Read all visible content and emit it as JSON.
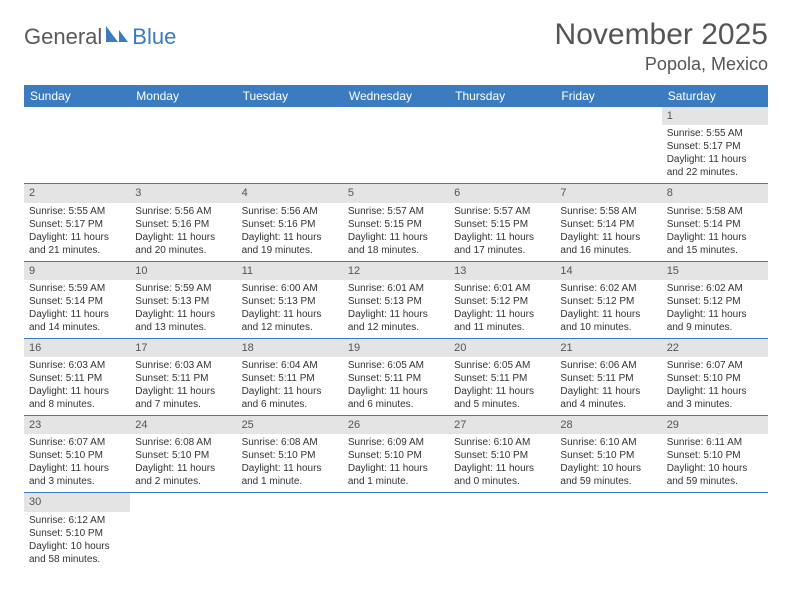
{
  "brand": {
    "name1": "General",
    "name2": "Blue"
  },
  "title": "November 2025",
  "location": "Popola, Mexico",
  "colors": {
    "header_bg": "#3b7bbf",
    "header_fg": "#ffffff",
    "daynum_bg": "#e4e4e4",
    "rule": "#3b7bbf",
    "text": "#333333",
    "title": "#555555"
  },
  "weekdays": [
    "Sunday",
    "Monday",
    "Tuesday",
    "Wednesday",
    "Thursday",
    "Friday",
    "Saturday"
  ],
  "weeks": [
    [
      null,
      null,
      null,
      null,
      null,
      null,
      {
        "n": "1",
        "sr": "Sunrise: 5:55 AM",
        "ss": "Sunset: 5:17 PM",
        "dl": "Daylight: 11 hours and 22 minutes."
      }
    ],
    [
      {
        "n": "2",
        "sr": "Sunrise: 5:55 AM",
        "ss": "Sunset: 5:17 PM",
        "dl": "Daylight: 11 hours and 21 minutes."
      },
      {
        "n": "3",
        "sr": "Sunrise: 5:56 AM",
        "ss": "Sunset: 5:16 PM",
        "dl": "Daylight: 11 hours and 20 minutes."
      },
      {
        "n": "4",
        "sr": "Sunrise: 5:56 AM",
        "ss": "Sunset: 5:16 PM",
        "dl": "Daylight: 11 hours and 19 minutes."
      },
      {
        "n": "5",
        "sr": "Sunrise: 5:57 AM",
        "ss": "Sunset: 5:15 PM",
        "dl": "Daylight: 11 hours and 18 minutes."
      },
      {
        "n": "6",
        "sr": "Sunrise: 5:57 AM",
        "ss": "Sunset: 5:15 PM",
        "dl": "Daylight: 11 hours and 17 minutes."
      },
      {
        "n": "7",
        "sr": "Sunrise: 5:58 AM",
        "ss": "Sunset: 5:14 PM",
        "dl": "Daylight: 11 hours and 16 minutes."
      },
      {
        "n": "8",
        "sr": "Sunrise: 5:58 AM",
        "ss": "Sunset: 5:14 PM",
        "dl": "Daylight: 11 hours and 15 minutes."
      }
    ],
    [
      {
        "n": "9",
        "sr": "Sunrise: 5:59 AM",
        "ss": "Sunset: 5:14 PM",
        "dl": "Daylight: 11 hours and 14 minutes."
      },
      {
        "n": "10",
        "sr": "Sunrise: 5:59 AM",
        "ss": "Sunset: 5:13 PM",
        "dl": "Daylight: 11 hours and 13 minutes."
      },
      {
        "n": "11",
        "sr": "Sunrise: 6:00 AM",
        "ss": "Sunset: 5:13 PM",
        "dl": "Daylight: 11 hours and 12 minutes."
      },
      {
        "n": "12",
        "sr": "Sunrise: 6:01 AM",
        "ss": "Sunset: 5:13 PM",
        "dl": "Daylight: 11 hours and 12 minutes."
      },
      {
        "n": "13",
        "sr": "Sunrise: 6:01 AM",
        "ss": "Sunset: 5:12 PM",
        "dl": "Daylight: 11 hours and 11 minutes."
      },
      {
        "n": "14",
        "sr": "Sunrise: 6:02 AM",
        "ss": "Sunset: 5:12 PM",
        "dl": "Daylight: 11 hours and 10 minutes."
      },
      {
        "n": "15",
        "sr": "Sunrise: 6:02 AM",
        "ss": "Sunset: 5:12 PM",
        "dl": "Daylight: 11 hours and 9 minutes."
      }
    ],
    [
      {
        "n": "16",
        "sr": "Sunrise: 6:03 AM",
        "ss": "Sunset: 5:11 PM",
        "dl": "Daylight: 11 hours and 8 minutes."
      },
      {
        "n": "17",
        "sr": "Sunrise: 6:03 AM",
        "ss": "Sunset: 5:11 PM",
        "dl": "Daylight: 11 hours and 7 minutes."
      },
      {
        "n": "18",
        "sr": "Sunrise: 6:04 AM",
        "ss": "Sunset: 5:11 PM",
        "dl": "Daylight: 11 hours and 6 minutes."
      },
      {
        "n": "19",
        "sr": "Sunrise: 6:05 AM",
        "ss": "Sunset: 5:11 PM",
        "dl": "Daylight: 11 hours and 6 minutes."
      },
      {
        "n": "20",
        "sr": "Sunrise: 6:05 AM",
        "ss": "Sunset: 5:11 PM",
        "dl": "Daylight: 11 hours and 5 minutes."
      },
      {
        "n": "21",
        "sr": "Sunrise: 6:06 AM",
        "ss": "Sunset: 5:11 PM",
        "dl": "Daylight: 11 hours and 4 minutes."
      },
      {
        "n": "22",
        "sr": "Sunrise: 6:07 AM",
        "ss": "Sunset: 5:10 PM",
        "dl": "Daylight: 11 hours and 3 minutes."
      }
    ],
    [
      {
        "n": "23",
        "sr": "Sunrise: 6:07 AM",
        "ss": "Sunset: 5:10 PM",
        "dl": "Daylight: 11 hours and 3 minutes."
      },
      {
        "n": "24",
        "sr": "Sunrise: 6:08 AM",
        "ss": "Sunset: 5:10 PM",
        "dl": "Daylight: 11 hours and 2 minutes."
      },
      {
        "n": "25",
        "sr": "Sunrise: 6:08 AM",
        "ss": "Sunset: 5:10 PM",
        "dl": "Daylight: 11 hours and 1 minute."
      },
      {
        "n": "26",
        "sr": "Sunrise: 6:09 AM",
        "ss": "Sunset: 5:10 PM",
        "dl": "Daylight: 11 hours and 1 minute."
      },
      {
        "n": "27",
        "sr": "Sunrise: 6:10 AM",
        "ss": "Sunset: 5:10 PM",
        "dl": "Daylight: 11 hours and 0 minutes."
      },
      {
        "n": "28",
        "sr": "Sunrise: 6:10 AM",
        "ss": "Sunset: 5:10 PM",
        "dl": "Daylight: 10 hours and 59 minutes."
      },
      {
        "n": "29",
        "sr": "Sunrise: 6:11 AM",
        "ss": "Sunset: 5:10 PM",
        "dl": "Daylight: 10 hours and 59 minutes."
      }
    ],
    [
      {
        "n": "30",
        "sr": "Sunrise: 6:12 AM",
        "ss": "Sunset: 5:10 PM",
        "dl": "Daylight: 10 hours and 58 minutes."
      },
      null,
      null,
      null,
      null,
      null,
      null
    ]
  ]
}
